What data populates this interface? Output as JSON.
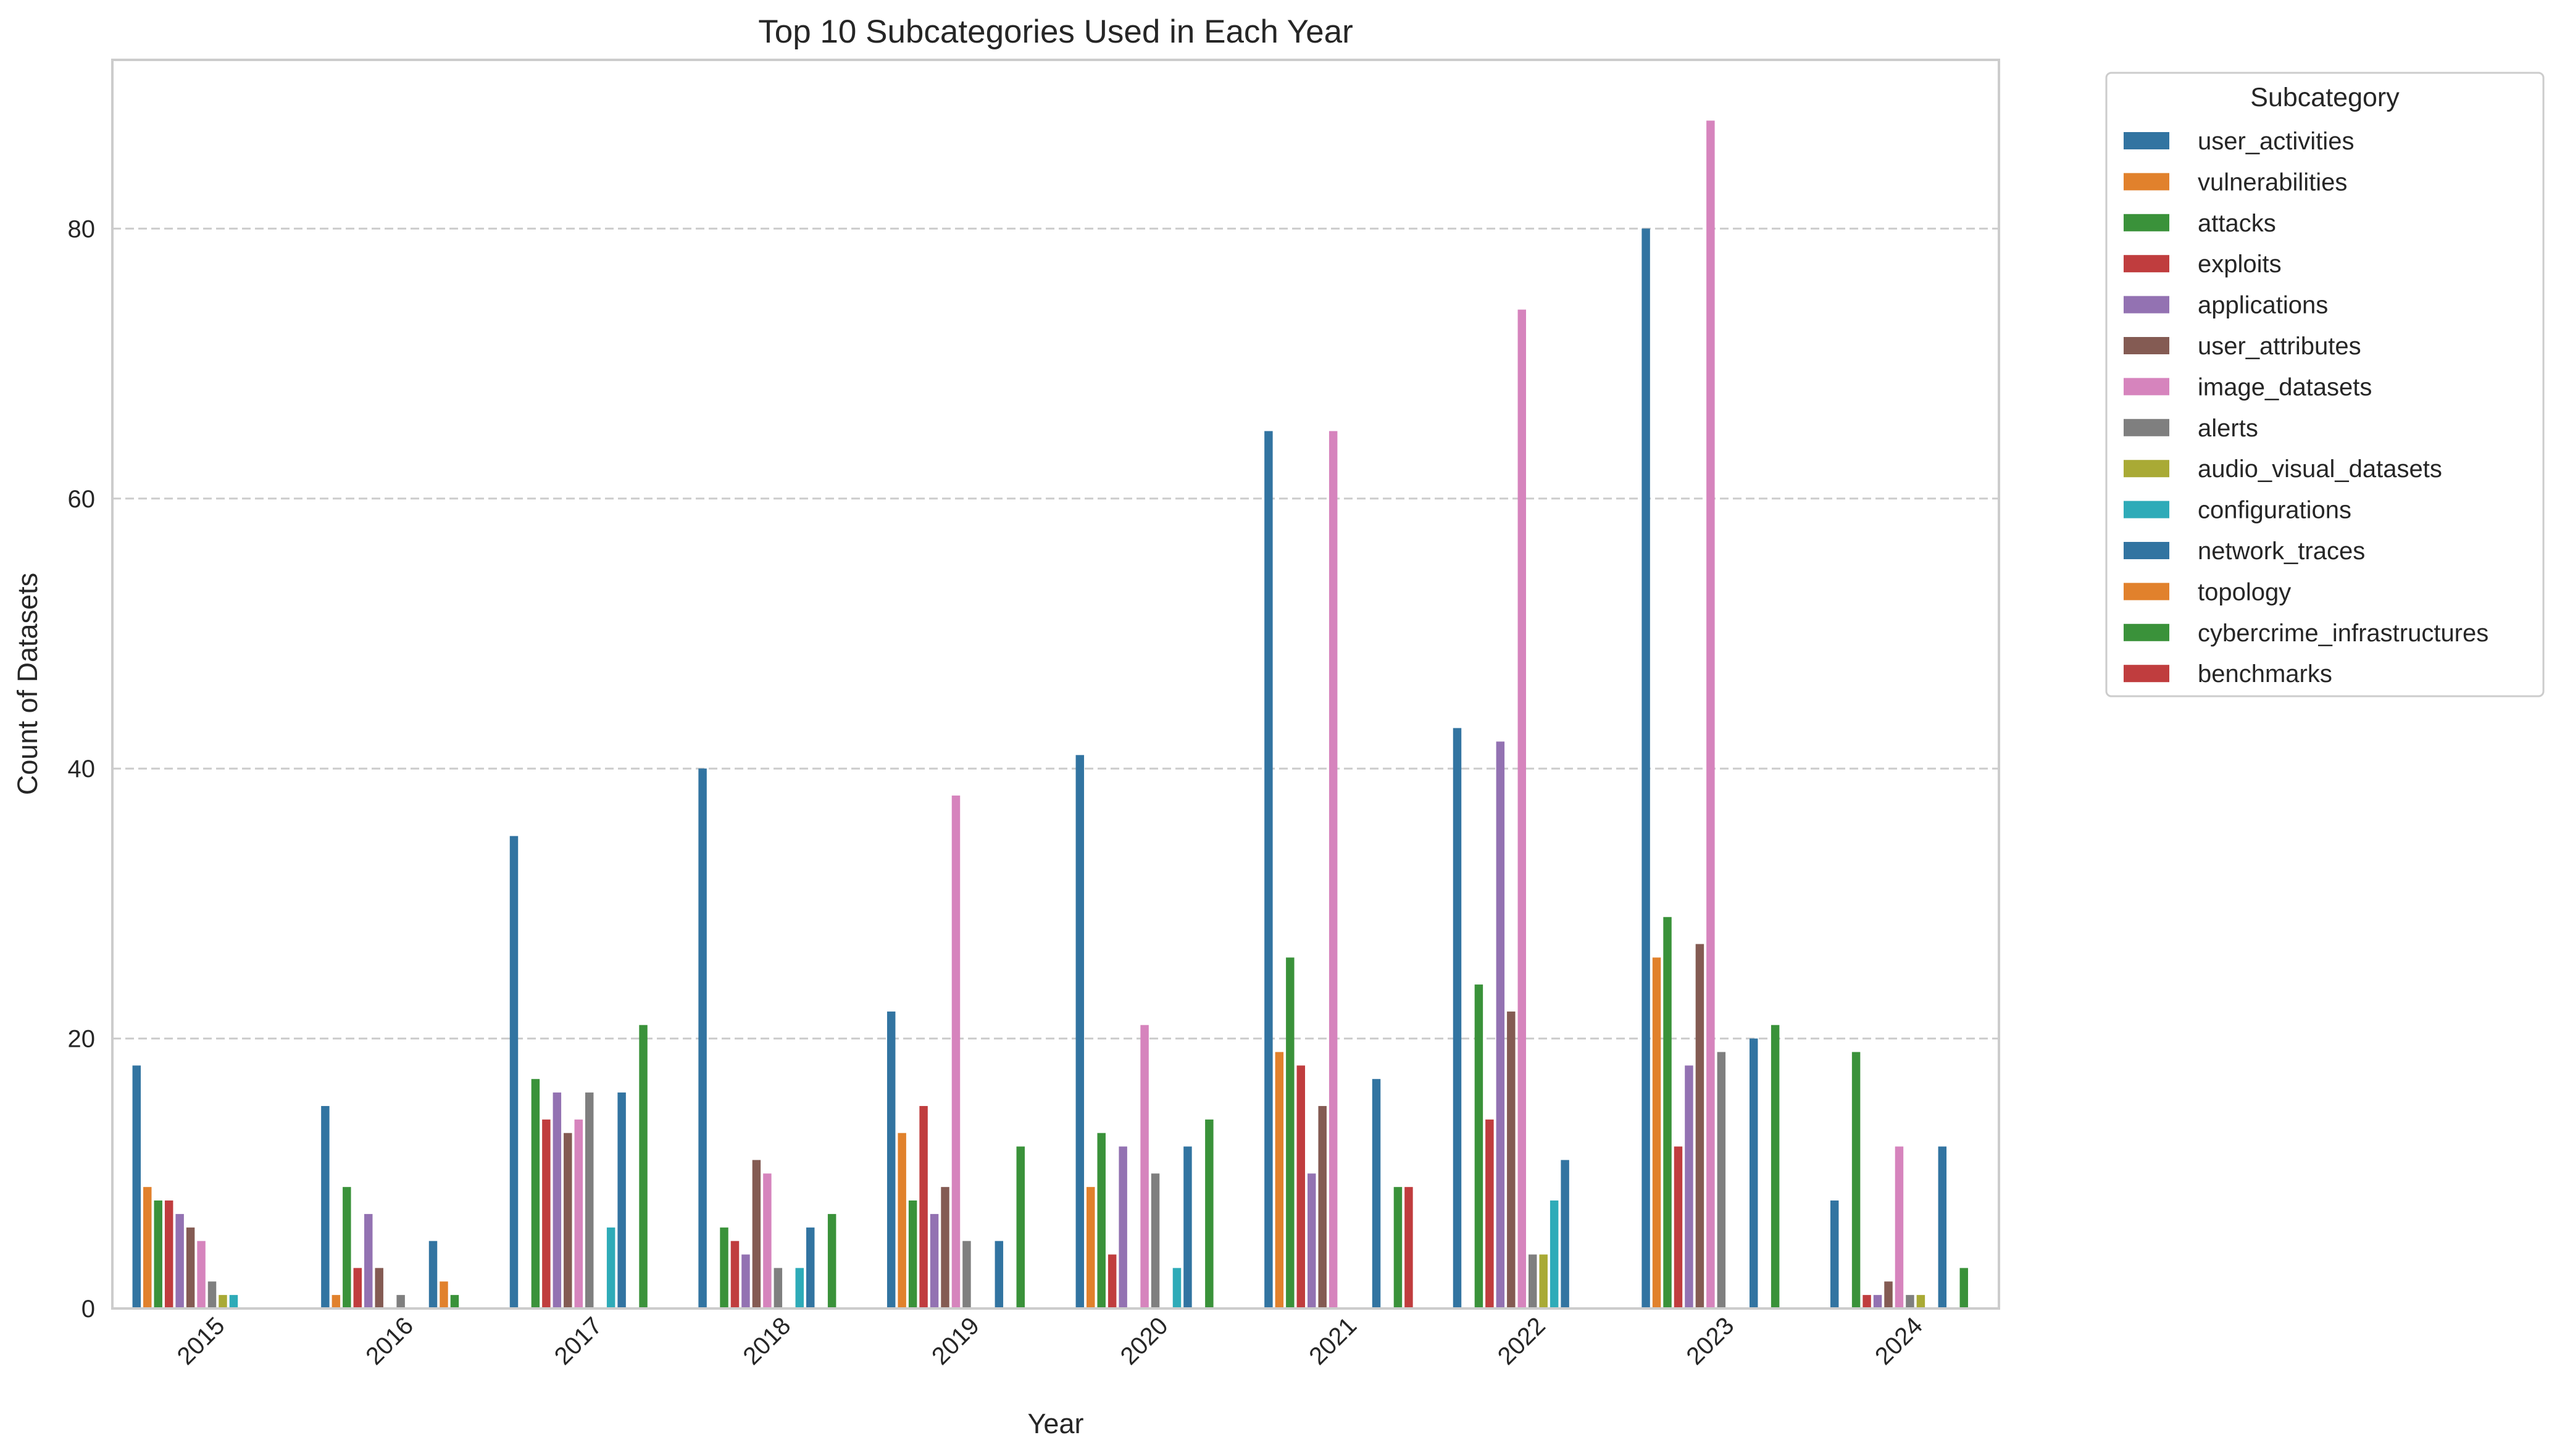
{
  "chart_data": {
    "type": "bar",
    "title": "Top 10 Subcategories Used in Each Year",
    "xlabel": "Year",
    "ylabel": "Count of Datasets",
    "ylim": [
      0,
      92.5
    ],
    "yticks": [
      0,
      20,
      40,
      60,
      80
    ],
    "grid": "horizontal dashed",
    "legend": {
      "title": "Subcategory",
      "placement": "outside-right-top"
    },
    "categories": [
      "2015",
      "2016",
      "2017",
      "2018",
      "2019",
      "2020",
      "2021",
      "2022",
      "2023",
      "2024"
    ],
    "series": [
      {
        "name": "user_activities",
        "color": "#3274a1",
        "values": [
          18,
          15,
          35,
          40,
          22,
          41,
          65,
          43,
          80,
          8
        ]
      },
      {
        "name": "vulnerabilities",
        "color": "#e1812c",
        "values": [
          9,
          1,
          null,
          null,
          13,
          9,
          19,
          null,
          26,
          null
        ]
      },
      {
        "name": "attacks",
        "color": "#3a923a",
        "values": [
          8,
          9,
          17,
          6,
          8,
          13,
          26,
          24,
          29,
          19
        ]
      },
      {
        "name": "exploits",
        "color": "#c03d3e",
        "values": [
          8,
          3,
          14,
          5,
          15,
          4,
          18,
          14,
          12,
          1
        ]
      },
      {
        "name": "applications",
        "color": "#9372b2",
        "values": [
          7,
          7,
          16,
          4,
          7,
          12,
          10,
          42,
          18,
          1
        ]
      },
      {
        "name": "user_attributes",
        "color": "#845b53",
        "values": [
          6,
          3,
          13,
          11,
          9,
          null,
          15,
          22,
          27,
          2
        ]
      },
      {
        "name": "image_datasets",
        "color": "#d684bd",
        "values": [
          5,
          null,
          14,
          10,
          38,
          21,
          65,
          74,
          88,
          12
        ]
      },
      {
        "name": "alerts",
        "color": "#7f7f7f",
        "values": [
          2,
          1,
          16,
          3,
          5,
          10,
          null,
          4,
          19,
          1
        ]
      },
      {
        "name": "audio_visual_datasets",
        "color": "#a9aa35",
        "values": [
          1,
          null,
          null,
          null,
          null,
          null,
          null,
          4,
          null,
          1
        ]
      },
      {
        "name": "configurations",
        "color": "#2eabb8",
        "values": [
          1,
          null,
          6,
          3,
          null,
          3,
          null,
          8,
          null,
          null
        ]
      },
      {
        "name": "network_traces",
        "color": "#3274a1",
        "values": [
          null,
          5,
          16,
          6,
          5,
          12,
          17,
          11,
          20,
          12
        ]
      },
      {
        "name": "topology",
        "color": "#e1812c",
        "values": [
          null,
          2,
          null,
          null,
          null,
          null,
          null,
          null,
          null,
          null
        ]
      },
      {
        "name": "cybercrime_infrastructures",
        "color": "#3a923a",
        "values": [
          null,
          1,
          21,
          7,
          12,
          14,
          9,
          null,
          21,
          3
        ]
      },
      {
        "name": "benchmarks",
        "color": "#c03d3e",
        "values": [
          null,
          null,
          null,
          null,
          null,
          null,
          9,
          null,
          null,
          null
        ]
      }
    ]
  }
}
